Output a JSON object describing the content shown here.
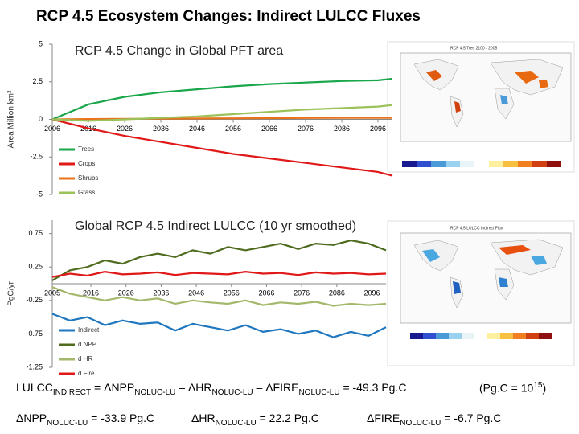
{
  "title": "RCP 4.5 Ecosystem Changes: Indirect LULCC Fluxes",
  "chart_data": [
    {
      "type": "line",
      "title": "RCP 4.5 Change in Global PFT area",
      "y_label": "Area Million km²",
      "x": [
        2006,
        2016,
        2026,
        2036,
        2046,
        2056,
        2066,
        2076,
        2086,
        2096,
        2100
      ],
      "xlim": [
        2006,
        2100
      ],
      "xticks": [
        2006,
        2016,
        2026,
        2036,
        2046,
        2056,
        2066,
        2076,
        2086,
        2096
      ],
      "ylim": [
        -5,
        5
      ],
      "yticks": [
        5,
        2.5,
        0,
        -2.5,
        -5
      ],
      "legend": "lower left",
      "series": [
        {
          "name": "Trees",
          "color": "#1aa64a",
          "values": [
            0,
            1.0,
            1.5,
            1.8,
            2.0,
            2.2,
            2.35,
            2.45,
            2.55,
            2.6,
            2.7
          ]
        },
        {
          "name": "Crops",
          "color": "#e01818",
          "values": [
            0,
            -0.6,
            -1.1,
            -1.5,
            -1.9,
            -2.3,
            -2.6,
            -2.9,
            -3.2,
            -3.5,
            -3.75
          ]
        },
        {
          "name": "Shrubs",
          "color": "#e8731a",
          "values": [
            0,
            0.02,
            0.04,
            0.05,
            0.06,
            0.07,
            0.08,
            0.09,
            0.1,
            0.1,
            0.1
          ]
        },
        {
          "name": "Grass",
          "color": "#9cc25a",
          "values": [
            0,
            -0.1,
            0.0,
            0.1,
            0.2,
            0.35,
            0.5,
            0.65,
            0.75,
            0.85,
            0.95
          ]
        }
      ]
    },
    {
      "type": "line",
      "title": "Global RCP 4.5 Indirect LULCC (10 yr smoothed)",
      "y_label": "PgC/yr",
      "x": [
        2005,
        2010,
        2015,
        2020,
        2025,
        2030,
        2035,
        2040,
        2045,
        2050,
        2055,
        2060,
        2065,
        2070,
        2075,
        2080,
        2085,
        2090,
        2095,
        2100
      ],
      "xlim": [
        2005,
        2100
      ],
      "xticks": [
        2005,
        2016,
        2026,
        2036,
        2046,
        2056,
        2066,
        2076,
        2086,
        2096
      ],
      "ylim": [
        -1.25,
        0.95
      ],
      "yticks": [
        0.75,
        0.25,
        -0.25,
        -0.75,
        -1.25
      ],
      "legend": "lower left",
      "series": [
        {
          "name": "Indirect",
          "color": "#1f77c0",
          "values": [
            -0.45,
            -0.55,
            -0.5,
            -0.62,
            -0.55,
            -0.6,
            -0.58,
            -0.7,
            -0.6,
            -0.65,
            -0.7,
            -0.62,
            -0.72,
            -0.68,
            -0.75,
            -0.7,
            -0.8,
            -0.72,
            -0.78,
            -0.65
          ]
        },
        {
          "name": "d NPP",
          "color": "#4e6b1e",
          "values": [
            0.05,
            0.2,
            0.25,
            0.35,
            0.3,
            0.4,
            0.45,
            0.4,
            0.5,
            0.45,
            0.55,
            0.5,
            0.55,
            0.6,
            0.52,
            0.6,
            0.58,
            0.65,
            0.6,
            0.5
          ]
        },
        {
          "name": "d HR",
          "color": "#a3b86a",
          "values": [
            -0.05,
            -0.15,
            -0.2,
            -0.25,
            -0.2,
            -0.25,
            -0.22,
            -0.3,
            -0.25,
            -0.28,
            -0.3,
            -0.25,
            -0.32,
            -0.28,
            -0.3,
            -0.27,
            -0.33,
            -0.3,
            -0.32,
            -0.3
          ]
        },
        {
          "name": "d Fire",
          "color": "#e01818",
          "values": [
            0.1,
            0.15,
            0.12,
            0.18,
            0.14,
            0.15,
            0.17,
            0.13,
            0.16,
            0.15,
            0.14,
            0.18,
            0.15,
            0.16,
            0.13,
            0.17,
            0.15,
            0.16,
            0.14,
            0.15
          ]
        }
      ]
    }
  ],
  "maps": [
    {
      "title": "RCP 4.5 Tree 2100 - 2005"
    },
    {
      "title": "RCP 4.5 LULCC Indirect Flux"
    }
  ],
  "equations": {
    "main": [
      "LULCC",
      "INDIRECT",
      " = ΔNPP",
      "NOLUC-LU",
      " – ΔHR",
      "NOLUC-LU",
      " – ΔFIRE",
      "NOLUC-LU",
      " = -49.3 Pg.C"
    ],
    "unit_note": [
      "(Pg.C = 10",
      "15",
      ")"
    ],
    "npp": [
      "ΔNPP",
      "NOLUC-LU",
      " = -33.9 Pg.C"
    ],
    "hr": [
      "ΔHR",
      "NOLUC-LU",
      " = 22.2 Pg.C"
    ],
    "fire": [
      "ΔFIRE",
      "NOLUC-LU",
      " = -6.7 Pg.C"
    ]
  }
}
